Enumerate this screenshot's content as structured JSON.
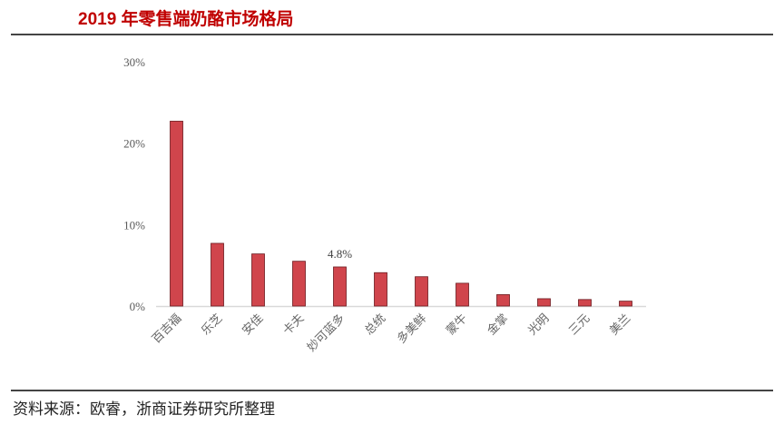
{
  "header": {
    "title": "2019 年零售端奶酪市场格局"
  },
  "footer": {
    "source": "资料来源：欧睿，浙商证券研究所整理"
  },
  "chart_data": {
    "type": "bar",
    "title": "",
    "xlabel": "",
    "ylabel": "",
    "categories": [
      "百吉福",
      "乐芝",
      "安佳",
      "卡夫",
      "妙可蓝多",
      "总统",
      "多美鲜",
      "蒙牛",
      "金掌",
      "光明",
      "三元",
      "美兰"
    ],
    "values": [
      22.7,
      7.7,
      6.4,
      5.5,
      4.8,
      4.1,
      3.6,
      2.8,
      1.4,
      0.9,
      0.8,
      0.6
    ],
    "ylim": [
      0,
      30
    ],
    "yticks": [
      "0%",
      "10%",
      "20%",
      "30%"
    ],
    "data_labels": [
      {
        "category": "妙可蓝多",
        "text": "4.8%"
      }
    ],
    "grid": false,
    "bar_color": "#d0454c",
    "bar_edge": "#6b1a1e"
  }
}
